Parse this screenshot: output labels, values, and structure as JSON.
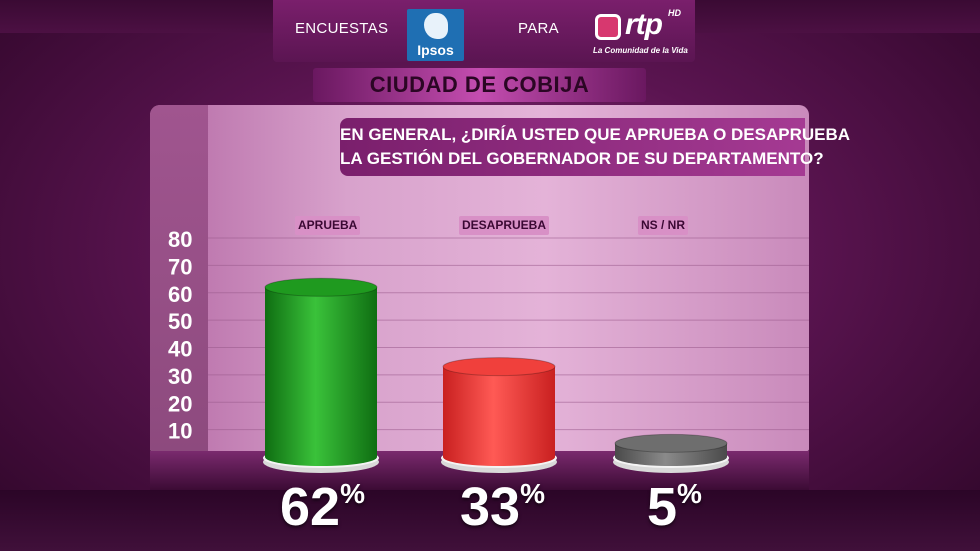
{
  "header": {
    "left_text": "ENCUESTAS",
    "middle_text": "PARA",
    "ipsos_logo_text": "Ipsos",
    "rtp_logo_text": "rtp",
    "rtp_hd": "HD",
    "rtp_tagline": "La Comunidad de la Vida"
  },
  "city": "CIUDAD DE COBIJA",
  "question": {
    "line1": "EN GENERAL, ¿DIRÍA USTED QUE APRUEBA O DESAPRUEBA",
    "line2": "LA GESTIÓN DEL GOBERNADOR DE SU DEPARTAMENTO?"
  },
  "chart_data": {
    "type": "bar",
    "categories": [
      "APRUEBA",
      "DESAPRUEBA",
      "NS / NR"
    ],
    "values": [
      62,
      33,
      5
    ],
    "value_labels": [
      "62",
      "33",
      "5"
    ],
    "unit": "%",
    "ylim": [
      0,
      80
    ],
    "yticks": [
      "80",
      "70",
      "60",
      "50",
      "40",
      "30",
      "20",
      "10"
    ],
    "grid": true,
    "colors": [
      "#1f9a1f",
      "#f0403c",
      "#6e6e6e"
    ]
  }
}
